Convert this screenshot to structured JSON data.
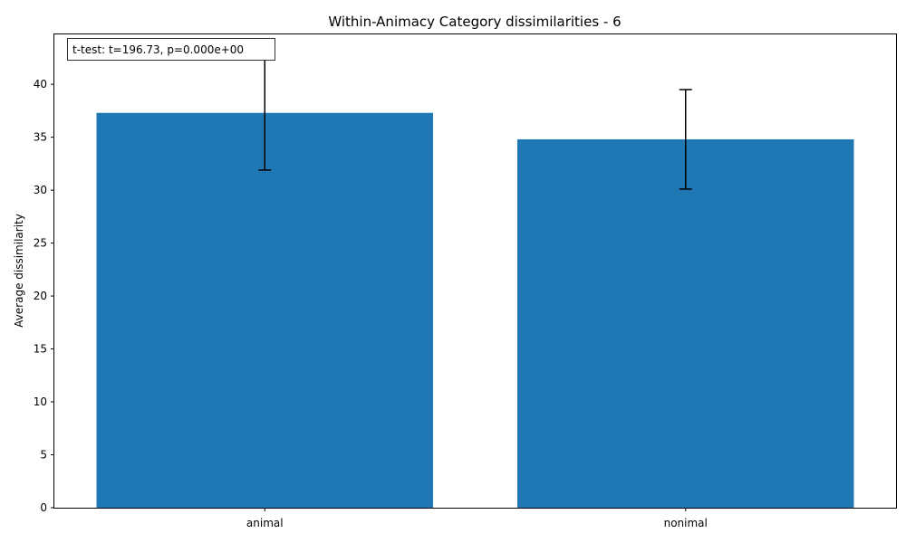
{
  "chart_data": {
    "type": "bar",
    "title": "Within-Animacy Category dissimilarities - 6",
    "xlabel": "",
    "ylabel": "Average dissimilarity",
    "categories": [
      "animal",
      "nonimal"
    ],
    "values": [
      37.3,
      34.8
    ],
    "error_low": [
      31.9,
      30.1
    ],
    "error_high": [
      42.7,
      39.5
    ],
    "ylim": [
      0,
      44.8
    ],
    "yticks": [
      0,
      5,
      10,
      15,
      20,
      25,
      30,
      35,
      40
    ],
    "bar_color": "#1f77b4",
    "error_color": "#000000",
    "grid": false,
    "legend": null,
    "annotation": "t-test: t=196.73, p=0.000e+00"
  }
}
